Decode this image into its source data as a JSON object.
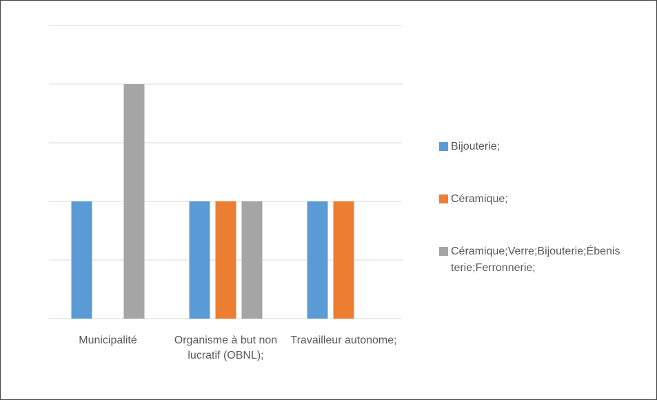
{
  "chart_data": {
    "type": "bar",
    "categories": [
      "Municipalité",
      "Organisme à but non lucratif (OBNL);",
      "Travailleur autonome;"
    ],
    "series": [
      {
        "name": "Bijouterie;",
        "color": "#5b9bd5",
        "values": [
          2,
          2,
          2
        ]
      },
      {
        "name": "Céramique;",
        "color": "#ed7d31",
        "values": [
          null,
          2,
          2
        ]
      },
      {
        "name": "Céramique;Verre;Bijouterie;Ébenisterie;Ferronnerie;",
        "color": "#a5a5a5",
        "values": [
          4,
          2,
          null
        ]
      }
    ],
    "ylim": [
      0,
      5
    ],
    "yticks": [
      0,
      1,
      2,
      3,
      4,
      5
    ],
    "grid": true,
    "legend": "right"
  }
}
